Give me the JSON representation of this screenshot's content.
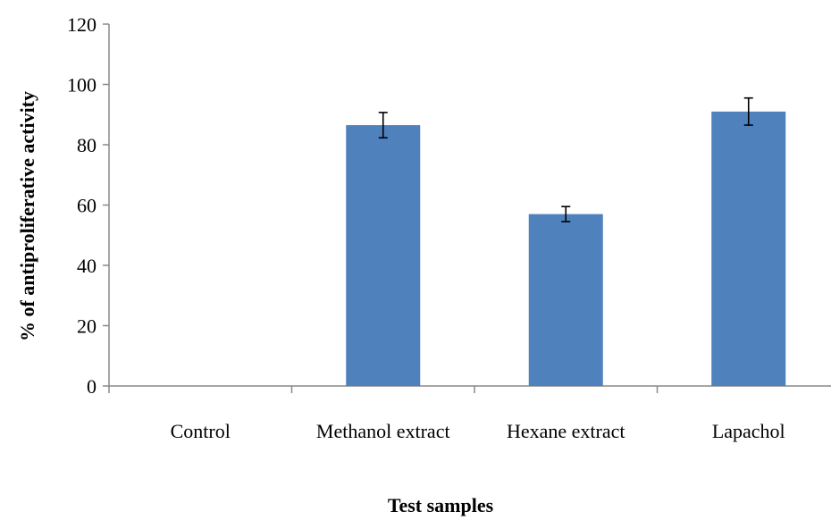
{
  "chart_data": {
    "type": "bar",
    "categories": [
      "Control",
      "Methanol extract",
      "Hexane extract",
      "Lapachol"
    ],
    "series": [
      {
        "values": [
          0,
          86.5,
          57,
          91
        ],
        "errors": [
          0,
          4.2,
          2.5,
          4.5
        ],
        "color": "#4f81bd"
      }
    ],
    "xlabel": "Test samples",
    "ylabel": "% of antiproliferative activity",
    "ylim": [
      0,
      120
    ],
    "yticks": [
      0,
      20,
      40,
      60,
      80,
      100,
      120
    ],
    "grid": false,
    "legend": "none"
  }
}
